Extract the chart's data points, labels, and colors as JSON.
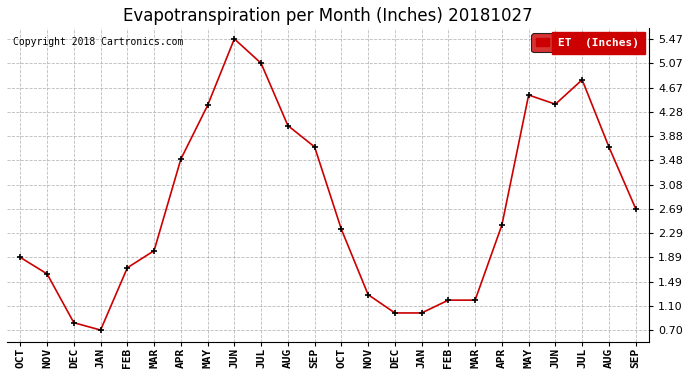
{
  "title": "Evapotranspiration per Month (Inches) 20181027",
  "copyright": "Copyright 2018 Cartronics.com",
  "legend_label": "ET  (Inches)",
  "legend_color": "#cc0000",
  "x_labels": [
    "OCT",
    "NOV",
    "DEC",
    "JAN",
    "FEB",
    "MAR",
    "APR",
    "MAY",
    "JUN",
    "JUL",
    "AUG",
    "SEP",
    "OCT",
    "NOV",
    "DEC",
    "JAN",
    "FEB",
    "MAR",
    "APR",
    "MAY",
    "JUN",
    "JUL",
    "AUG",
    "SEP",
    ""
  ],
  "y_values": [
    1.89,
    1.62,
    0.82,
    0.7,
    1.72,
    2.0,
    3.5,
    4.38,
    5.47,
    5.07,
    4.05,
    3.7,
    2.35,
    1.28,
    0.98,
    0.98,
    1.19,
    1.19,
    2.42,
    4.55,
    4.4,
    4.8,
    3.7,
    2.69
  ],
  "line_color": "#cc0000",
  "marker_color": "#000000",
  "grid_color": "#aaaaaa",
  "bg_color": "#ffffff",
  "yticks": [
    0.7,
    1.1,
    1.49,
    1.89,
    2.29,
    2.69,
    3.08,
    3.48,
    3.88,
    4.28,
    4.67,
    5.07,
    5.47
  ],
  "ylim": [
    0.5,
    5.65
  ],
  "title_fontsize": 12,
  "tick_fontsize": 8
}
